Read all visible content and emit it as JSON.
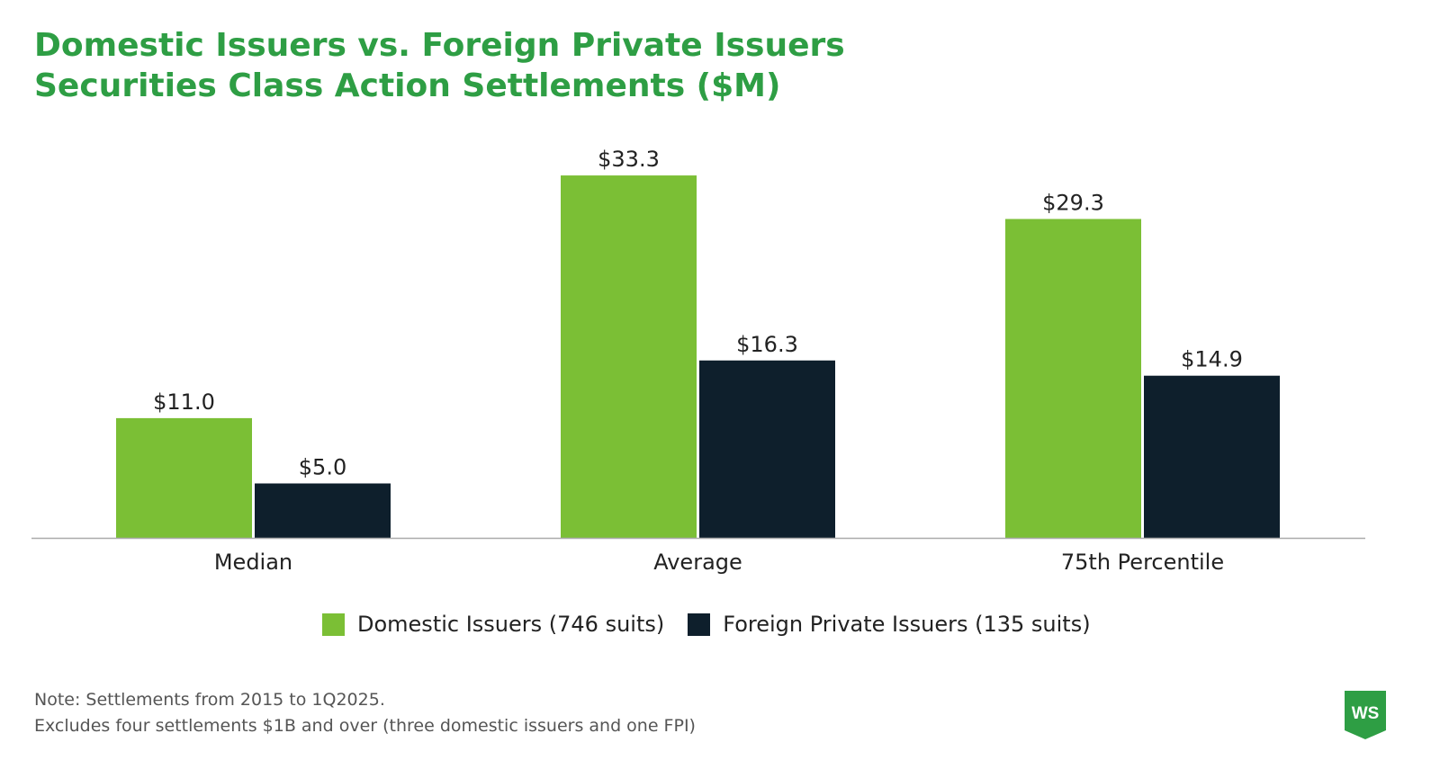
{
  "title": {
    "line1": "Domestic Issuers vs. Foreign Private Issuers",
    "line2": "Securities Class Action Settlements ($M)"
  },
  "colors": {
    "title": "#2e9e44",
    "domestic": "#7bbf35",
    "foreign": "#0e1f2c",
    "axis": "#aaaaaa",
    "logo": "#2e9e44"
  },
  "chart_data": {
    "type": "bar",
    "categories": [
      "Median",
      "Average",
      "75th Percentile"
    ],
    "series": [
      {
        "name": "Domestic Issuers (746 suits)",
        "values": [
          11.0,
          33.3,
          29.3
        ],
        "labels": [
          "$11.0",
          "$33.3",
          "$29.3"
        ]
      },
      {
        "name": "Foreign Private Issuers (135 suits)",
        "values": [
          5.0,
          16.3,
          14.9
        ],
        "labels": [
          "$5.0",
          "$16.3",
          "$14.9"
        ]
      }
    ],
    "ylim": [
      0,
      36
    ],
    "grid": false,
    "legend_position": "bottom"
  },
  "note": {
    "line1": "Note: Settlements from 2015 to 1Q2025.",
    "line2": "Excludes four settlements $1B and over (three domestic issuers and one FPI)"
  },
  "logo": {
    "text": "WS"
  }
}
